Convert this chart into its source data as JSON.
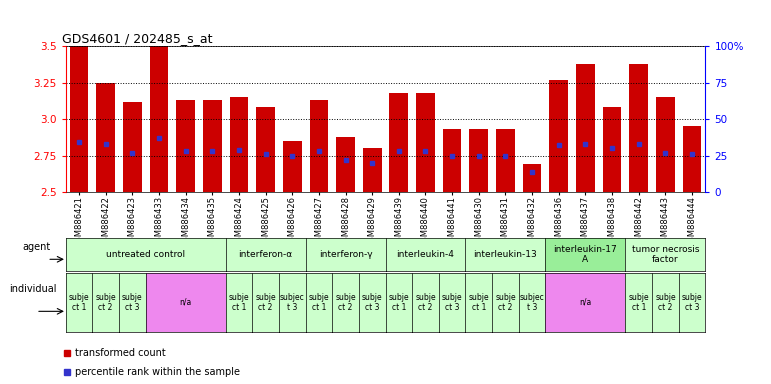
{
  "title": "GDS4601 / 202485_s_at",
  "samples": [
    "GSM886421",
    "GSM886422",
    "GSM886423",
    "GSM886433",
    "GSM886434",
    "GSM886435",
    "GSM886424",
    "GSM886425",
    "GSM886426",
    "GSM886427",
    "GSM886428",
    "GSM886429",
    "GSM886439",
    "GSM886440",
    "GSM886441",
    "GSM886430",
    "GSM886431",
    "GSM886432",
    "GSM886436",
    "GSM886437",
    "GSM886438",
    "GSM886442",
    "GSM886443",
    "GSM886444"
  ],
  "bar_values": [
    3.5,
    3.25,
    3.12,
    3.5,
    3.13,
    3.13,
    3.15,
    3.08,
    2.85,
    3.13,
    2.88,
    2.8,
    3.18,
    3.18,
    2.93,
    2.93,
    2.93,
    2.69,
    3.27,
    3.38,
    3.08,
    3.38,
    3.15,
    2.95
  ],
  "percentile_values": [
    2.84,
    2.83,
    2.77,
    2.87,
    2.78,
    2.78,
    2.79,
    2.76,
    2.75,
    2.78,
    2.72,
    2.7,
    2.78,
    2.78,
    2.75,
    2.75,
    2.75,
    2.64,
    2.82,
    2.83,
    2.8,
    2.83,
    2.77,
    2.76
  ],
  "y_min": 2.5,
  "y_max": 3.5,
  "bar_color": "#cc0000",
  "blue_color": "#3333cc",
  "agents": [
    {
      "label": "untreated control",
      "start": 0,
      "end": 6,
      "color": "#ccffcc"
    },
    {
      "label": "interferon-α",
      "start": 6,
      "end": 9,
      "color": "#ccffcc"
    },
    {
      "label": "interferon-γ",
      "start": 9,
      "end": 12,
      "color": "#ccffcc"
    },
    {
      "label": "interleukin-4",
      "start": 12,
      "end": 15,
      "color": "#ccffcc"
    },
    {
      "label": "interleukin-13",
      "start": 15,
      "end": 18,
      "color": "#ccffcc"
    },
    {
      "label": "interleukin-17\nA",
      "start": 18,
      "end": 21,
      "color": "#99ee99"
    },
    {
      "label": "tumor necrosis\nfactor",
      "start": 21,
      "end": 24,
      "color": "#ccffcc"
    }
  ],
  "individuals": [
    {
      "label": "subje\nct 1",
      "start": 0,
      "end": 1,
      "color": "#ccffcc"
    },
    {
      "label": "subje\nct 2",
      "start": 1,
      "end": 2,
      "color": "#ccffcc"
    },
    {
      "label": "subje\nct 3",
      "start": 2,
      "end": 3,
      "color": "#ccffcc"
    },
    {
      "label": "n/a",
      "start": 3,
      "end": 6,
      "color": "#ee88ee"
    },
    {
      "label": "subje\nct 1",
      "start": 6,
      "end": 7,
      "color": "#ccffcc"
    },
    {
      "label": "subje\nct 2",
      "start": 7,
      "end": 8,
      "color": "#ccffcc"
    },
    {
      "label": "subjec\nt 3",
      "start": 8,
      "end": 9,
      "color": "#ccffcc"
    },
    {
      "label": "subje\nct 1",
      "start": 9,
      "end": 10,
      "color": "#ccffcc"
    },
    {
      "label": "subje\nct 2",
      "start": 10,
      "end": 11,
      "color": "#ccffcc"
    },
    {
      "label": "subje\nct 3",
      "start": 11,
      "end": 12,
      "color": "#ccffcc"
    },
    {
      "label": "subje\nct 1",
      "start": 12,
      "end": 13,
      "color": "#ccffcc"
    },
    {
      "label": "subje\nct 2",
      "start": 13,
      "end": 14,
      "color": "#ccffcc"
    },
    {
      "label": "subje\nct 3",
      "start": 14,
      "end": 15,
      "color": "#ccffcc"
    },
    {
      "label": "subje\nct 1",
      "start": 15,
      "end": 16,
      "color": "#ccffcc"
    },
    {
      "label": "subje\nct 2",
      "start": 16,
      "end": 17,
      "color": "#ccffcc"
    },
    {
      "label": "subjec\nt 3",
      "start": 17,
      "end": 18,
      "color": "#ccffcc"
    },
    {
      "label": "n/a",
      "start": 18,
      "end": 21,
      "color": "#ee88ee"
    },
    {
      "label": "subje\nct 1",
      "start": 21,
      "end": 22,
      "color": "#ccffcc"
    },
    {
      "label": "subje\nct 2",
      "start": 22,
      "end": 23,
      "color": "#ccffcc"
    },
    {
      "label": "subje\nct 3",
      "start": 23,
      "end": 24,
      "color": "#ccffcc"
    }
  ],
  "right_yticks": [
    0,
    25,
    50,
    75,
    100
  ],
  "right_yticklabels": [
    "0",
    "25",
    "50",
    "75",
    "100%"
  ],
  "left_yticks": [
    2.5,
    2.75,
    3.0,
    3.25,
    3.5
  ],
  "legend_items": [
    {
      "label": "transformed count",
      "color": "#cc0000"
    },
    {
      "label": "percentile rank within the sample",
      "color": "#3333cc"
    }
  ]
}
